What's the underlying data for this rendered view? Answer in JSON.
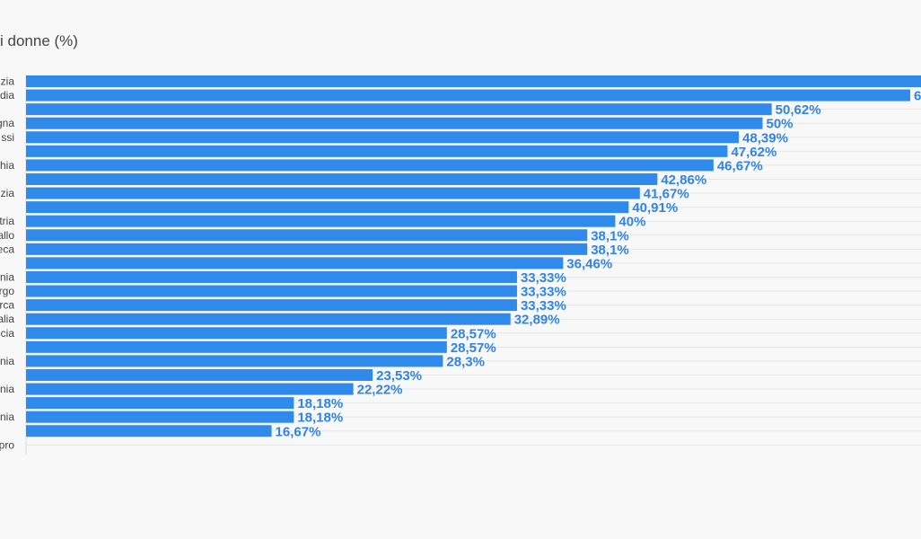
{
  "chart_data": {
    "type": "bar",
    "orientation": "horizontal",
    "title": "i donne (%)",
    "categories": [
      "zia",
      "dia",
      "",
      "gna",
      "ssi",
      "",
      "hia",
      "",
      "zia",
      "",
      "tria",
      "allo",
      "eca",
      "",
      "nia",
      "rgo",
      "rca",
      "alia",
      "cia",
      "",
      "nia",
      "",
      "nia",
      "",
      "nia",
      "",
      "pro"
    ],
    "values": [
      null,
      null,
      50.62,
      50,
      48.39,
      47.62,
      46.67,
      42.86,
      41.67,
      40.91,
      40,
      38.1,
      38.1,
      36.46,
      33.33,
      33.33,
      33.33,
      32.89,
      28.57,
      28.57,
      28.3,
      23.53,
      22.22,
      18.18,
      18.18,
      16.67,
      null
    ],
    "value_labels": [
      "",
      "6",
      "50,62%",
      "50%",
      "48,39%",
      "47,62%",
      "46,67%",
      "42,86%",
      "41,67%",
      "40,91%",
      "40%",
      "38,1%",
      "38,1%",
      "36,46%",
      "33,33%",
      "33,33%",
      "33,33%",
      "32,89%",
      "28,57%",
      "28,57%",
      "28,3%",
      "23,53%",
      "22,22%",
      "18,18%",
      "18,18%",
      "16,67%",
      ""
    ],
    "bar_color": "#2f8aeb",
    "label_color": "#2f84e4",
    "grid": true
  }
}
